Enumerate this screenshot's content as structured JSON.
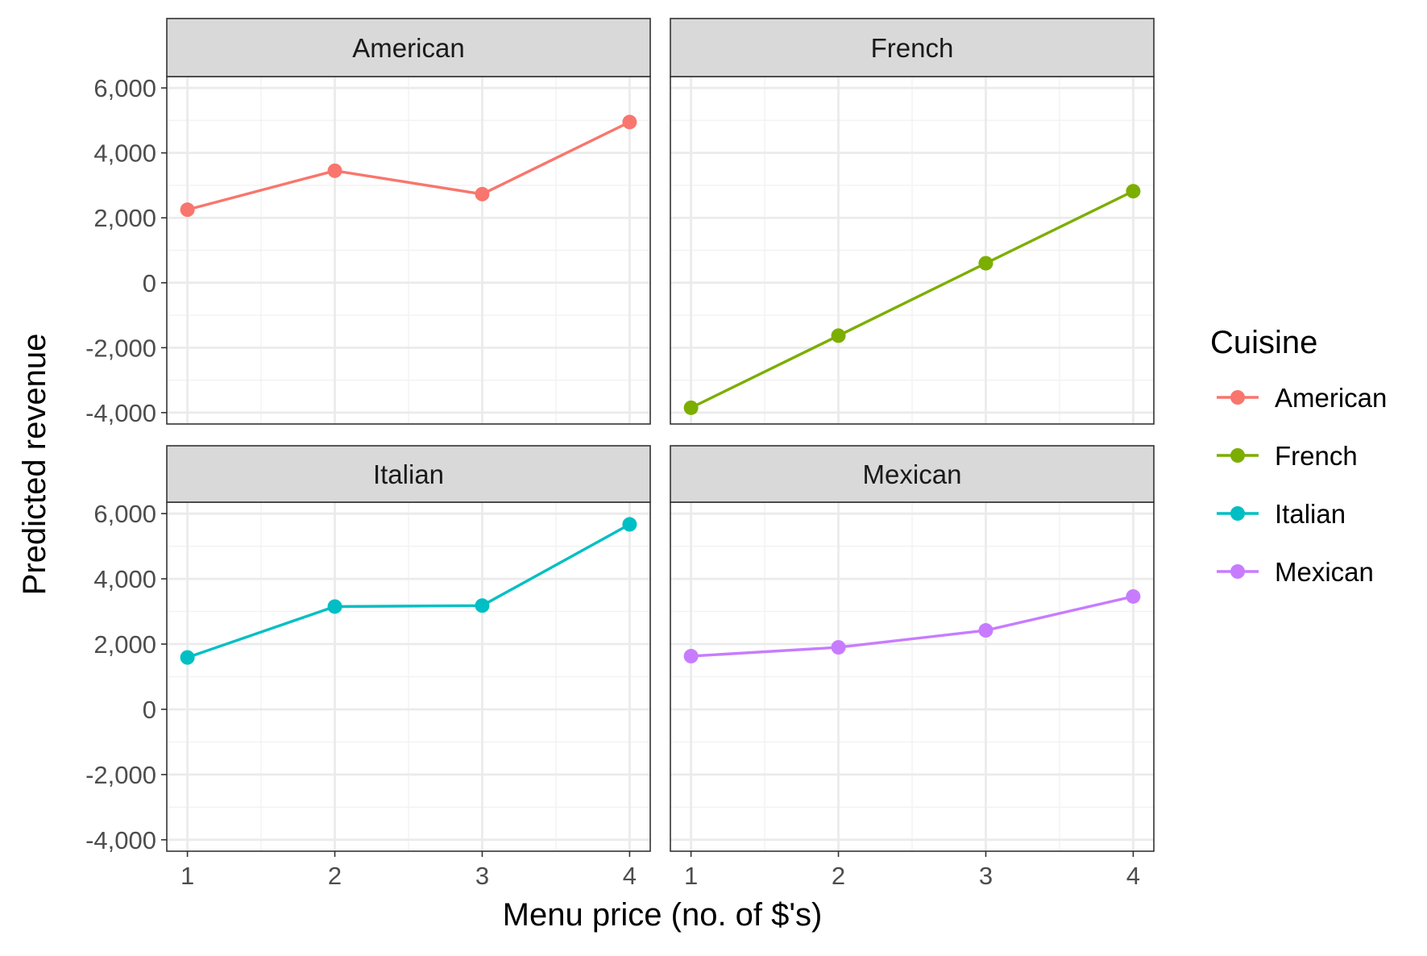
{
  "chart_data": {
    "type": "line",
    "facets": [
      "American",
      "French",
      "Italian",
      "Mexican"
    ],
    "x": [
      1,
      2,
      3,
      4
    ],
    "xlabel": "Menu price (no. of $'s)",
    "ylabel": "Predicted revenue",
    "xlim": [
      0.86,
      4.14
    ],
    "ylim": [
      -4350,
      6350
    ],
    "x_ticks": [
      "1",
      "2",
      "3",
      "4"
    ],
    "y_ticks": [
      -4000,
      -2000,
      0,
      2000,
      4000,
      6000
    ],
    "y_tick_labels": [
      "-4,000",
      "-2,000",
      "0",
      "2,000",
      "4,000",
      "6,000"
    ],
    "grid": true,
    "legend": {
      "title": "Cuisine",
      "position": "right"
    },
    "series": [
      {
        "name": "American",
        "color": "#F8766D",
        "values": [
          2250,
          3450,
          2730,
          4950
        ]
      },
      {
        "name": "French",
        "color": "#7CAE00",
        "values": [
          -3850,
          -1630,
          600,
          2820
        ]
      },
      {
        "name": "Italian",
        "color": "#00BFC4",
        "values": [
          1590,
          3150,
          3180,
          5670
        ]
      },
      {
        "name": "Mexican",
        "color": "#C77CFF",
        "values": [
          1630,
          1900,
          2420,
          3460
        ]
      }
    ]
  }
}
